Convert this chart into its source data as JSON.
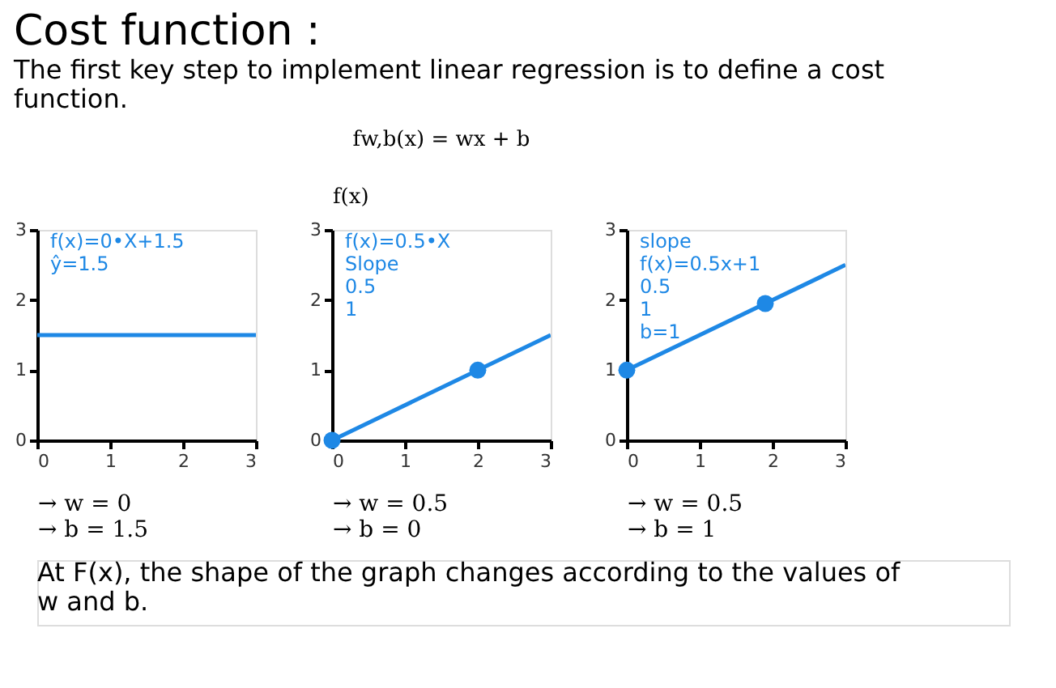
{
  "chart_data": [
    {
      "type": "other",
      "title": "Cost function :",
      "subtitle": "The first key step to implement linear regression is to define a cost\nfunction."
    },
    {
      "type": "line",
      "xlim": [
        0,
        3
      ],
      "ylim": [
        0,
        3
      ],
      "xticks": [
        0,
        1,
        2,
        3
      ],
      "yticks": [
        0,
        1,
        2,
        3
      ],
      "grid": false,
      "xlabel": "→ w = 0\n→ b = 1.5",
      "series": [
        {
          "type": "line",
          "color": "#1e88e5",
          "x": [
            0,
            3
          ],
          "values": [
            1.5,
            1.5
          ]
        }
      ],
      "annotations": [
        "f(x)=0•X+1.5",
        "ŷ=1.5"
      ]
    },
    {
      "type": "line",
      "title": "fw,b(x) = wx + b",
      "ylabel": "f(x)",
      "xlim": [
        0,
        3
      ],
      "ylim": [
        0,
        3
      ],
      "xticks": [
        0,
        1,
        2,
        3
      ],
      "yticks": [
        0,
        1,
        2,
        3
      ],
      "grid": false,
      "xlabel": "→ w = 0.5\n→ b = 0",
      "series": [
        {
          "type": "line",
          "color": "#1e88e5",
          "x": [
            0,
            3
          ],
          "values": [
            0,
            1.5
          ]
        },
        {
          "type": "scatter",
          "marker": "circle",
          "color": "#1e88e5",
          "x": [
            0,
            2
          ],
          "values": [
            0,
            1
          ]
        }
      ],
      "annotations": [
        "f(x)=0.5•X",
        "Slope",
        "0.5",
        "1"
      ]
    },
    {
      "type": "line",
      "xlim": [
        0,
        3
      ],
      "ylim": [
        0,
        3
      ],
      "xticks": [
        0,
        1,
        2,
        3
      ],
      "yticks": [
        0,
        1,
        2,
        3
      ],
      "grid": false,
      "xlabel": "→ w = 0.5\n→ b = 1",
      "series": [
        {
          "type": "line",
          "color": "#1e88e5",
          "x": [
            0,
            3
          ],
          "values": [
            1,
            2.5
          ]
        },
        {
          "type": "scatter",
          "marker": "circle",
          "color": "#1e88e5",
          "x": [
            0,
            1.9
          ],
          "values": [
            1,
            1.95
          ]
        }
      ],
      "annotations": [
        "slope",
        "f(x)=0.5x+1",
        "0.5",
        "1",
        "b=1"
      ]
    },
    {
      "type": "other",
      "annotations": [
        "At F(x), the shape of the graph changes according to the values of\nw and b."
      ]
    }
  ]
}
